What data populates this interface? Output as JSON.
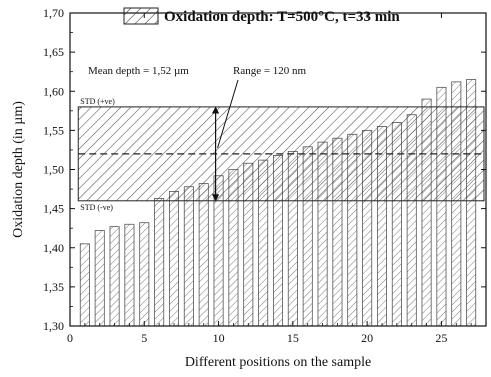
{
  "chart_data": {
    "type": "bar",
    "title": "",
    "xlabel": "Different positions on the sample",
    "ylabel": "Oxidation depth (in µm)",
    "xlim": [
      0,
      28
    ],
    "ylim": [
      1.3,
      1.7
    ],
    "x_ticks": [
      0,
      5,
      10,
      15,
      20,
      25
    ],
    "x_tick_labels": [
      "0",
      "5",
      "10",
      "15",
      "20",
      "25"
    ],
    "y_ticks": [
      1.3,
      1.35,
      1.4,
      1.45,
      1.5,
      1.55,
      1.6,
      1.65,
      1.7
    ],
    "y_tick_labels": [
      "1,30",
      "1,35",
      "1,40",
      "1,45",
      "1,50",
      "1,55",
      "1,60",
      "1,65",
      "1,70"
    ],
    "grid": false,
    "legend_position": "top",
    "series": [
      {
        "name": "Oxidation depth: T=500°C, t=33 min",
        "x": [
          1,
          2,
          3,
          4,
          5,
          6,
          7,
          8,
          9,
          10,
          11,
          12,
          13,
          14,
          15,
          16,
          17,
          18,
          19,
          20,
          21,
          22,
          23,
          24,
          25,
          26,
          27
        ],
        "values": [
          1.405,
          1.422,
          1.427,
          1.43,
          1.432,
          1.463,
          1.472,
          1.478,
          1.482,
          1.492,
          1.5,
          1.508,
          1.512,
          1.518,
          1.523,
          1.529,
          1.535,
          1.54,
          1.545,
          1.55,
          1.555,
          1.56,
          1.57,
          1.59,
          1.605,
          1.612,
          1.615
        ]
      }
    ],
    "mean": 1.52,
    "std_upper": 1.58,
    "std_lower": 1.46,
    "annotations": {
      "mean_label": "Mean depth = 1,52 µm",
      "range_label": "Range = 120 nm",
      "std_upper_label": "STD (+ve)",
      "std_lower_label": "STD (-ve)"
    }
  }
}
